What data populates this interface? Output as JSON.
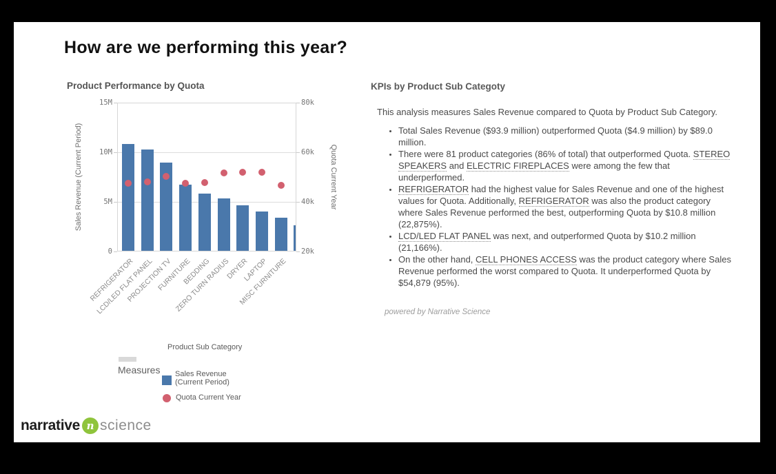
{
  "window": {
    "frame_color": "#000000",
    "panel_color": "#ffffff"
  },
  "header": {
    "title": "How are we performing this year?"
  },
  "chart_data": {
    "type": "combo",
    "title": "Product Performance by Quota",
    "x_dimension_label": "Product Sub Category",
    "categories": [
      "REFRIGERATOR",
      "LCD/LED FLAT PANEL",
      "PROJECTION TV",
      "FURNITURE",
      "BEDDING",
      "ZERO TURN RADIUS",
      "DRYER",
      "LAPTOP",
      "MISC FURNITURE",
      ""
    ],
    "series": [
      {
        "name": "Sales Revenue (Current Period)",
        "type": "bar",
        "color": "#4a78ab",
        "axis": "left",
        "values": [
          10900000,
          10300000,
          9000000,
          6700000,
          5800000,
          5300000,
          4600000,
          4000000,
          3400000,
          2600000
        ]
      },
      {
        "name": "Quota Current Year",
        "type": "scatter",
        "color": "#d2606f",
        "axis": "right",
        "values": [
          47500,
          48000,
          50200,
          47500,
          47700,
          51800,
          52100,
          52100,
          46700,
          null
        ]
      }
    ],
    "left_axis": {
      "label": "Sales Revenue (Current Period)",
      "ticks": [
        "0",
        "5M",
        "10M",
        "15M"
      ],
      "range": [
        0,
        15000000
      ]
    },
    "right_axis": {
      "label": "Quota Current Year",
      "ticks": [
        "20k",
        "40k",
        "60k",
        "80k"
      ],
      "range": [
        20000,
        80000
      ]
    },
    "grid": "horizontal",
    "legend_position": "bottom"
  },
  "legend": {
    "dimension_label": "Product Sub Category",
    "measures_label": "Measures",
    "items": [
      {
        "line1": "Sales Revenue",
        "line2": "(Current Period)",
        "swatch": "square",
        "color": "#4a78ab"
      },
      {
        "line1": "Quota Current Year",
        "line2": "",
        "swatch": "circle",
        "color": "#d2606f"
      }
    ]
  },
  "kpi_panel": {
    "title": "KPIs by Product Sub Categoty",
    "intro": "This analysis measures Sales Revenue compared to Quota by Product Sub Category.",
    "bullets": [
      {
        "segments": [
          {
            "t": "Total Sales Revenue ($93.9 million) outperformed Quota ($4.9 million) by $89.0 million."
          }
        ]
      },
      {
        "segments": [
          {
            "t": "There were 81 product categories (86% of total) that outperformed Quota. "
          },
          {
            "t": "STEREO SPEAKERS",
            "u": true
          },
          {
            "t": " and "
          },
          {
            "t": "ELECTRIC FIREPLACES",
            "u": true
          },
          {
            "t": " were among the few that underperformed."
          }
        ]
      },
      {
        "segments": [
          {
            "t": "REFRIGERATOR",
            "u": true
          },
          {
            "t": " had the highest value for Sales Revenue and one of the highest values for Quota. Additionally, "
          },
          {
            "t": "REFRIGERATOR",
            "u": true
          },
          {
            "t": " was also the product category where Sales Revenue performed the best, outperforming Quota by $10.8 million (22,875%)."
          }
        ]
      },
      {
        "segments": [
          {
            "t": "LCD/LED FLAT PANEL",
            "u": true
          },
          {
            "t": " was next, and outperformed Quota by $10.2 million (21,166%)."
          }
        ]
      },
      {
        "segments": [
          {
            "t": "On the other hand, "
          },
          {
            "t": "CELL PHONES ACCESS",
            "u": true
          },
          {
            "t": " was the product category where Sales Revenue performed the worst compared to Quota. It underperformed Quota by $54,879 (95%)."
          }
        ]
      }
    ],
    "powered_by": "powered by Narrative Science"
  },
  "footer_logo": {
    "word1": "narrative",
    "word2": "science",
    "icon_glyph": "n",
    "icon_color": "#8fc43c"
  }
}
